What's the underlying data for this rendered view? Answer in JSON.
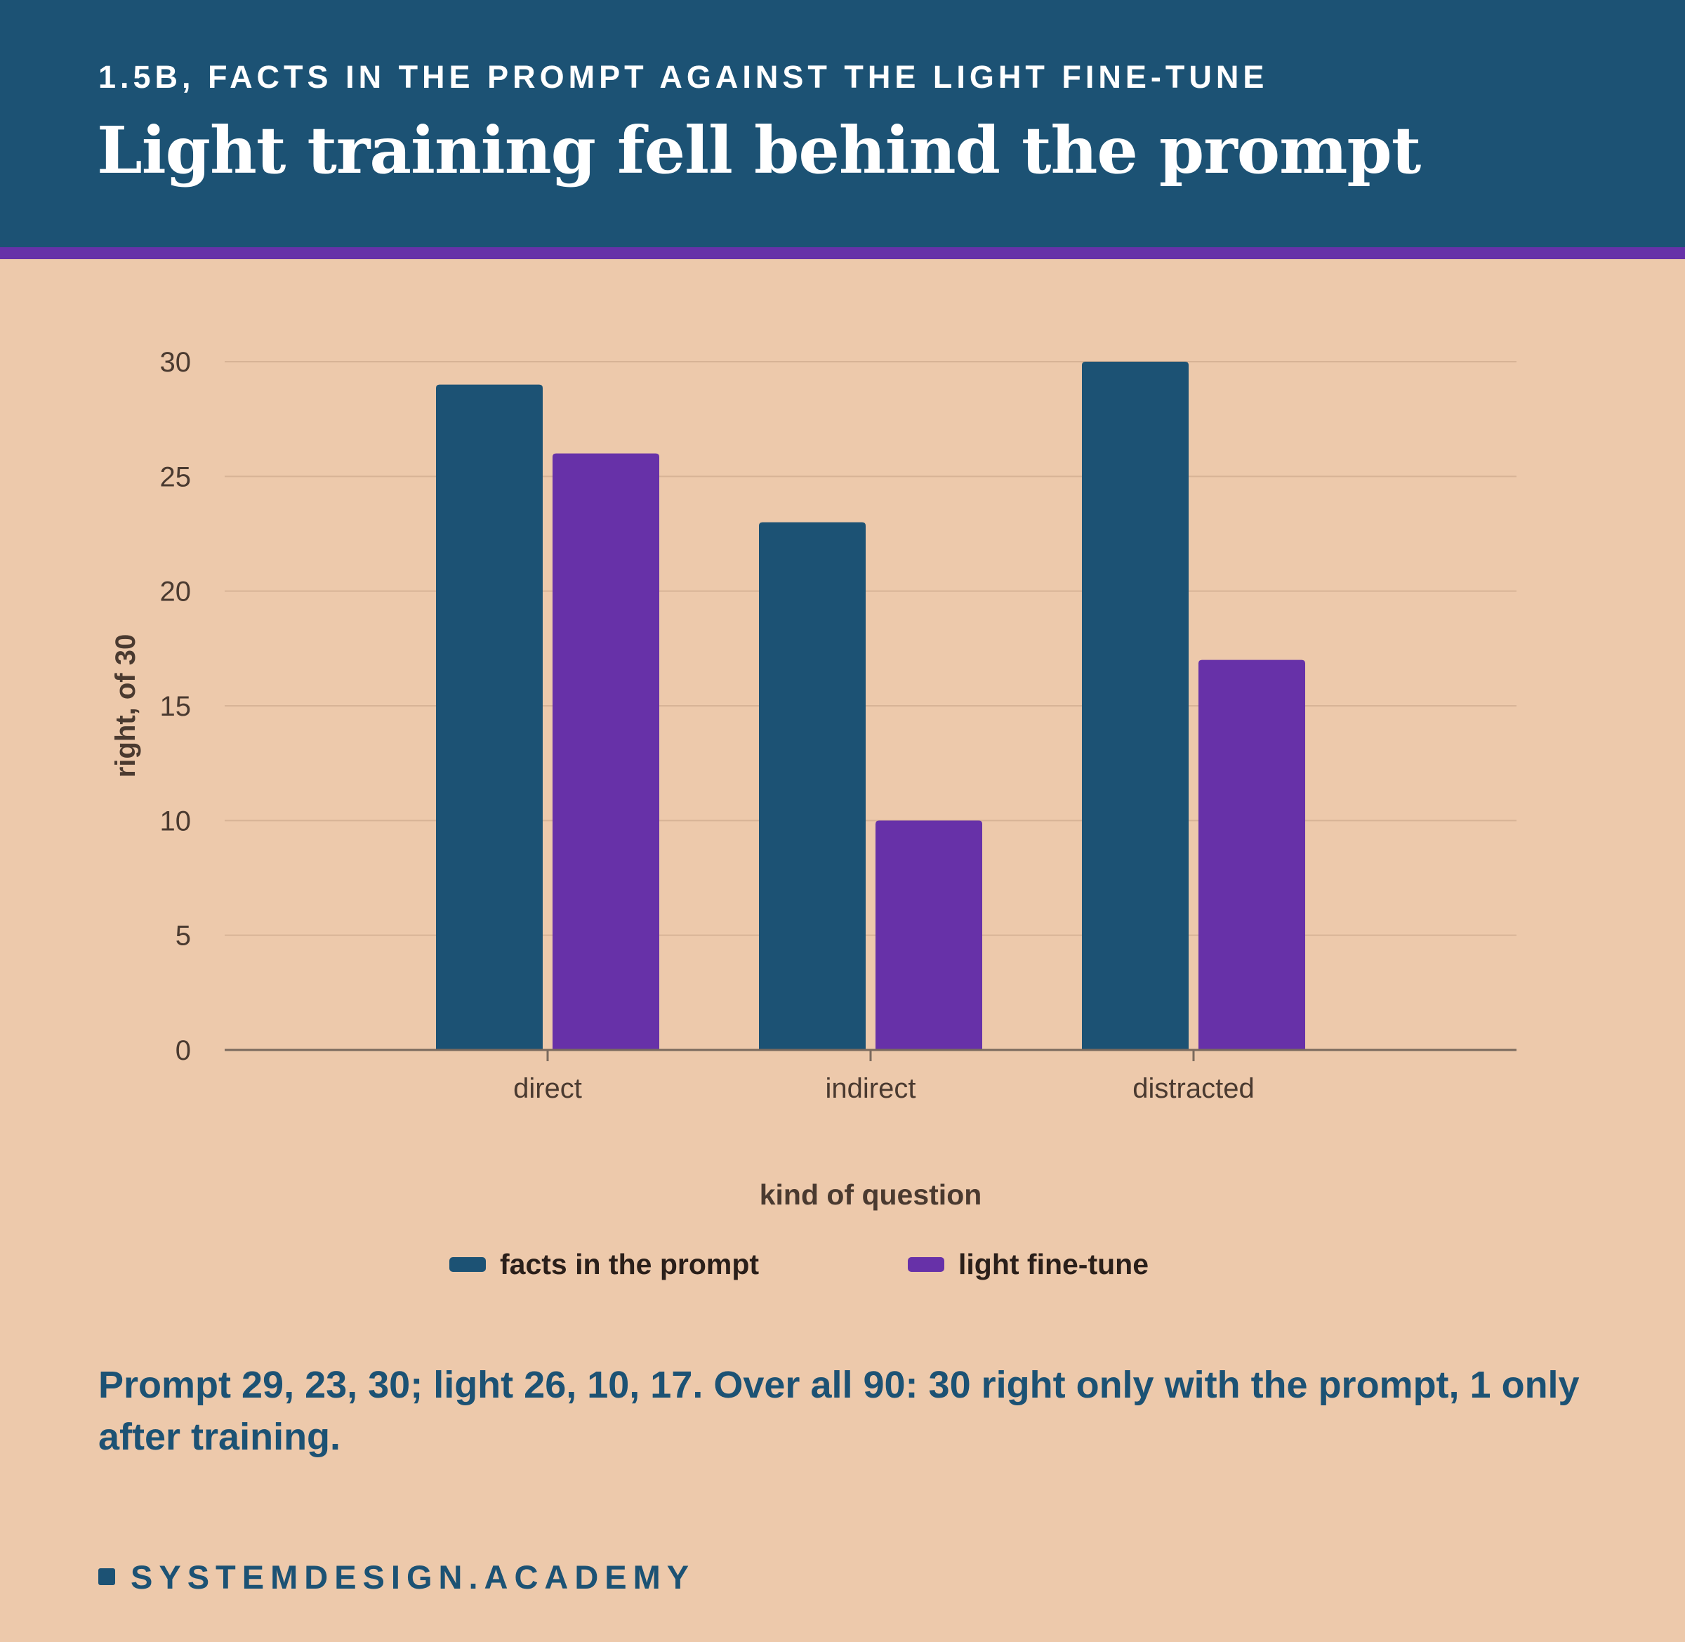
{
  "header": {
    "kicker": "1.5B, FACTS IN THE PROMPT AGAINST THE LIGHT FINE-TUNE",
    "headline": "Light training fell behind the prompt"
  },
  "colors": {
    "header_bg": "#1c5274",
    "accent_rule": "#6731a8",
    "page_bg": "#edc9ab"
  },
  "chart_data": {
    "type": "bar",
    "categories": [
      "direct",
      "indirect",
      "distracted"
    ],
    "series": [
      {
        "name": "facts in the prompt",
        "color": "#1c5274",
        "values": [
          29,
          23,
          30
        ]
      },
      {
        "name": "light fine-tune",
        "color": "#6731a8",
        "values": [
          26,
          10,
          17
        ]
      }
    ],
    "xlabel": "kind of question",
    "ylabel": "right, of 30",
    "ylim": [
      0,
      30
    ],
    "yticks": [
      0,
      5,
      10,
      15,
      20,
      25,
      30
    ],
    "grid": true,
    "legend_position": "bottom"
  },
  "caption": "Prompt 29, 23, 30; light 26, 10, 17. Over all 90: 30 right only with the prompt, 1 only after training.",
  "brand": "SYSTEMDESIGN.ACADEMY"
}
